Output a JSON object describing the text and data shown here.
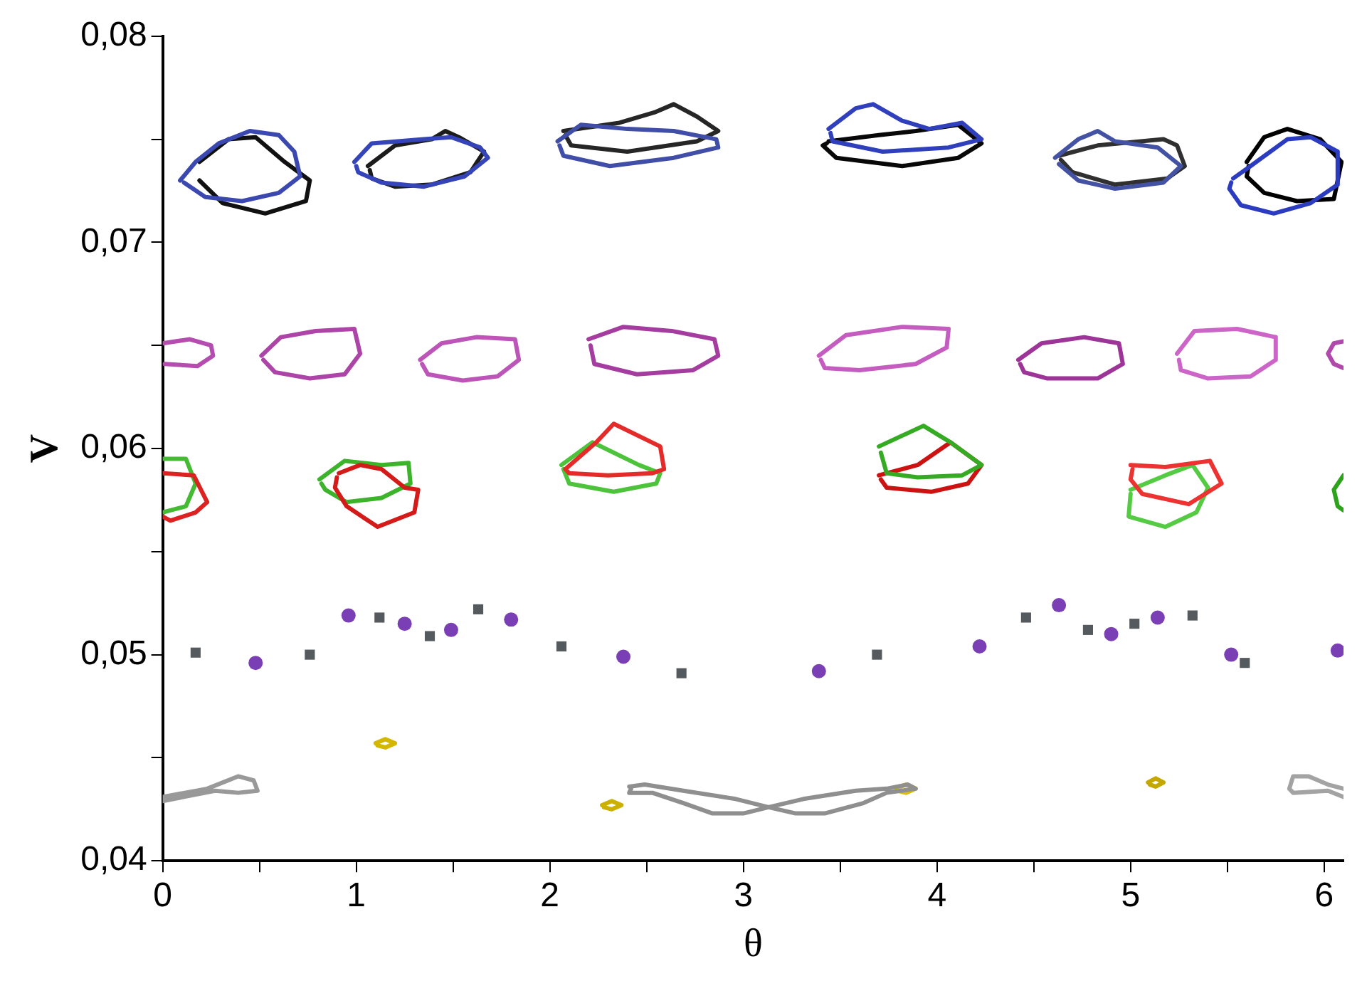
{
  "chart_data": {
    "type": "scatter",
    "xlabel": "θ",
    "ylabel": "V",
    "xlim": [
      0,
      6.1
    ],
    "ylim": [
      0.04,
      0.08
    ],
    "xticks": [
      0,
      {
        "value": 0.5,
        "label": null
      },
      1,
      {
        "value": 1.5,
        "label": null
      },
      2,
      {
        "value": 2.5,
        "label": null
      },
      3,
      {
        "value": 3.5,
        "label": null
      },
      4,
      {
        "value": 4.5,
        "label": null
      },
      5,
      {
        "value": 5.5,
        "label": null
      },
      6
    ],
    "yticks": [
      {
        "value": 0.04,
        "label": "0,04"
      },
      {
        "value": 0.045,
        "label": null
      },
      {
        "value": 0.05,
        "label": "0,05"
      },
      {
        "value": 0.055,
        "label": null
      },
      {
        "value": 0.06,
        "label": "0,06"
      },
      {
        "value": 0.065,
        "label": null
      },
      {
        "value": 0.07,
        "label": "0,07"
      },
      {
        "value": 0.075,
        "label": null
      },
      {
        "value": 0.08,
        "label": "0,08"
      }
    ],
    "grid": false,
    "legend": false,
    "series": [
      {
        "type": "line",
        "marker": "none",
        "color": "#3a48b0",
        "x": [
          0.09,
          0.17,
          0.29,
          0.45,
          0.6,
          0.68,
          0.71,
          0.6,
          0.41,
          0.22,
          0.11
        ],
        "values": [
          0.073,
          0.0739,
          0.0748,
          0.0754,
          0.0752,
          0.0744,
          0.0732,
          0.0724,
          0.072,
          0.0722,
          0.0729
        ]
      },
      {
        "type": "line",
        "marker": "none",
        "color": "#111111",
        "x": [
          0.19,
          0.34,
          0.48,
          0.63,
          0.76,
          0.74,
          0.53,
          0.31,
          0.19
        ],
        "values": [
          0.0739,
          0.075,
          0.0751,
          0.0739,
          0.073,
          0.072,
          0.0714,
          0.0719,
          0.073
        ]
      },
      {
        "type": "line",
        "marker": "none",
        "color": "#3544b8",
        "x": [
          0.99,
          1.08,
          1.35,
          1.49,
          1.64,
          1.68,
          1.56,
          1.35,
          1.13,
          1.01,
          1.0
        ],
        "values": [
          0.0739,
          0.0748,
          0.075,
          0.0751,
          0.0746,
          0.0741,
          0.0732,
          0.0727,
          0.0729,
          0.0734,
          0.0737
        ]
      },
      {
        "type": "line",
        "marker": "none",
        "color": "#1c1c1c",
        "x": [
          1.06,
          1.2,
          1.39,
          1.46,
          1.53,
          1.66,
          1.59,
          1.39,
          1.2,
          1.08,
          1.07
        ],
        "values": [
          0.0737,
          0.0747,
          0.075,
          0.0754,
          0.0751,
          0.0744,
          0.0734,
          0.0728,
          0.0727,
          0.0731,
          0.0735
        ]
      },
      {
        "type": "line",
        "marker": "none",
        "color": "#404ea8",
        "x": [
          2.04,
          2.16,
          2.4,
          2.64,
          2.86,
          2.87,
          2.64,
          2.31,
          2.07,
          2.05
        ],
        "values": [
          0.0749,
          0.0757,
          0.0755,
          0.0754,
          0.075,
          0.0746,
          0.0741,
          0.0737,
          0.0742,
          0.0747
        ]
      },
      {
        "type": "line",
        "marker": "none",
        "color": "#262626",
        "x": [
          2.07,
          2.36,
          2.54,
          2.64,
          2.76,
          2.87,
          2.76,
          2.4,
          2.11,
          2.08
        ],
        "values": [
          0.0754,
          0.0758,
          0.0763,
          0.0767,
          0.0761,
          0.0754,
          0.0749,
          0.0744,
          0.0747,
          0.0752
        ]
      },
      {
        "type": "line",
        "marker": "none",
        "color": "#3040bc",
        "x": [
          3.44,
          3.58,
          3.67,
          3.82,
          3.96,
          4.13,
          4.23,
          4.06,
          3.72,
          3.46,
          3.45
        ],
        "values": [
          0.0755,
          0.0765,
          0.0767,
          0.0759,
          0.0755,
          0.0758,
          0.075,
          0.0746,
          0.0744,
          0.0749,
          0.0753
        ]
      },
      {
        "type": "line",
        "marker": "none",
        "color": "#080808",
        "x": [
          3.44,
          3.7,
          3.89,
          4.11,
          4.23,
          4.11,
          3.82,
          3.48,
          3.41,
          3.43
        ],
        "values": [
          0.0749,
          0.0752,
          0.0754,
          0.0757,
          0.0748,
          0.0741,
          0.0737,
          0.0741,
          0.0747,
          0.0748
        ]
      },
      {
        "type": "line",
        "marker": "none",
        "color": "#4452a4",
        "x": [
          4.61,
          4.73,
          4.83,
          4.92,
          5.14,
          5.26,
          5.17,
          4.92,
          4.73,
          4.63
        ],
        "values": [
          0.0741,
          0.075,
          0.0754,
          0.0749,
          0.0746,
          0.0737,
          0.0729,
          0.0726,
          0.073,
          0.0738
        ]
      },
      {
        "type": "line",
        "marker": "none",
        "color": "#303030",
        "x": [
          4.63,
          4.83,
          5.17,
          5.24,
          5.28,
          5.19,
          4.92,
          4.7,
          4.64
        ],
        "values": [
          0.0742,
          0.0747,
          0.075,
          0.0747,
          0.0737,
          0.0731,
          0.0728,
          0.0734,
          0.074
        ]
      },
      {
        "type": "line",
        "marker": "none",
        "color": "#2c3cc0",
        "x": [
          5.53,
          5.62,
          5.81,
          5.93,
          6.07,
          6.07,
          5.93,
          5.74,
          5.57,
          5.51,
          5.52
        ],
        "values": [
          0.0731,
          0.0737,
          0.075,
          0.0751,
          0.0744,
          0.0728,
          0.0719,
          0.0714,
          0.0718,
          0.0726,
          0.0729
        ]
      },
      {
        "type": "line",
        "marker": "none",
        "color": "#000000",
        "x": [
          5.6,
          5.69,
          5.81,
          5.98,
          6.09,
          6.05,
          5.86,
          5.69,
          5.6,
          5.61
        ],
        "values": [
          0.0739,
          0.0751,
          0.0755,
          0.075,
          0.0739,
          0.0721,
          0.072,
          0.0724,
          0.0732,
          0.0737
        ]
      },
      {
        "type": "line",
        "marker": "none",
        "color": "#b54cb0",
        "x": [
          0,
          0.14,
          0.25,
          0.26,
          0.18,
          0.01
        ],
        "values": [
          0.0651,
          0.0653,
          0.065,
          0.0645,
          0.064,
          0.0641
        ]
      },
      {
        "type": "line",
        "marker": "none",
        "color": "#ad44a8",
        "x": [
          0.51,
          0.61,
          0.79,
          0.99,
          1.02,
          0.94,
          0.76,
          0.58,
          0.52
        ],
        "values": [
          0.0645,
          0.0654,
          0.0657,
          0.0658,
          0.0646,
          0.0636,
          0.0634,
          0.0637,
          0.0643
        ]
      },
      {
        "type": "line",
        "marker": "none",
        "color": "#bd54b8",
        "x": [
          1.33,
          1.44,
          1.62,
          1.82,
          1.84,
          1.73,
          1.55,
          1.37,
          1.34
        ],
        "values": [
          0.0643,
          0.0651,
          0.0654,
          0.0653,
          0.0643,
          0.0635,
          0.0633,
          0.0636,
          0.0641
        ]
      },
      {
        "type": "line",
        "marker": "none",
        "color": "#a53ca0",
        "x": [
          2.2,
          2.38,
          2.63,
          2.85,
          2.87,
          2.74,
          2.45,
          2.23,
          2.21
        ],
        "values": [
          0.0653,
          0.0659,
          0.0657,
          0.0653,
          0.0645,
          0.0638,
          0.0636,
          0.0641,
          0.065
        ]
      },
      {
        "type": "line",
        "marker": "none",
        "color": "#c55cc0",
        "x": [
          3.39,
          3.53,
          3.82,
          4.06,
          4.05,
          3.89,
          3.6,
          3.42,
          3.4
        ],
        "values": [
          0.0645,
          0.0655,
          0.0659,
          0.0658,
          0.0649,
          0.0641,
          0.0638,
          0.0639,
          0.0643
        ]
      },
      {
        "type": "line",
        "marker": "none",
        "color": "#9d3498",
        "x": [
          4.42,
          4.54,
          4.76,
          4.94,
          4.96,
          4.83,
          4.57,
          4.45,
          4.43
        ],
        "values": [
          0.0643,
          0.0651,
          0.0654,
          0.0651,
          0.0641,
          0.0634,
          0.0634,
          0.0637,
          0.0641
        ]
      },
      {
        "type": "line",
        "marker": "none",
        "color": "#cd64c8",
        "x": [
          5.24,
          5.33,
          5.55,
          5.75,
          5.75,
          5.62,
          5.4,
          5.26,
          5.25
        ],
        "values": [
          0.0646,
          0.0657,
          0.0658,
          0.0654,
          0.0643,
          0.0635,
          0.0634,
          0.0638,
          0.0643
        ]
      },
      {
        "type": "line",
        "marker": "none",
        "color": "#b148ac",
        "x": [
          6.1,
          6.05,
          6.02,
          6.05,
          6.1
        ],
        "values": [
          0.0652,
          0.0651,
          0.0646,
          0.0641,
          0.0639
        ]
      },
      {
        "type": "line",
        "marker": "none",
        "color": "#dd2222",
        "x": [
          0,
          0.16,
          0.23,
          0.17,
          0.04,
          0
        ],
        "values": [
          0.0588,
          0.0587,
          0.0574,
          0.0569,
          0.0565,
          0.0567
        ]
      },
      {
        "type": "line",
        "marker": "none",
        "color": "#44bb33",
        "x": [
          0,
          0.12,
          0.17,
          0.12,
          0
        ],
        "values": [
          0.0595,
          0.0595,
          0.0583,
          0.0572,
          0.0569
        ]
      },
      {
        "type": "line",
        "marker": "none",
        "color": "#d51a1a",
        "x": [
          0.91,
          1.02,
          1.13,
          1.25,
          1.32,
          1.3,
          1.11,
          0.95,
          0.89,
          0.9
        ],
        "values": [
          0.0588,
          0.0592,
          0.059,
          0.0581,
          0.058,
          0.0569,
          0.0562,
          0.0572,
          0.0581,
          0.0586
        ]
      },
      {
        "type": "line",
        "marker": "none",
        "color": "#3cb32b",
        "x": [
          0.81,
          0.94,
          1.13,
          1.27,
          1.28,
          1.13,
          0.95,
          0.84,
          0.82
        ],
        "values": [
          0.0585,
          0.0594,
          0.0592,
          0.0593,
          0.0583,
          0.0576,
          0.0574,
          0.058,
          0.0583
        ]
      },
      {
        "type": "line",
        "marker": "none",
        "color": "#e52a2a",
        "x": [
          2.08,
          2.24,
          2.33,
          2.57,
          2.59,
          2.53,
          2.3,
          2.1,
          2.09
        ],
        "values": [
          0.059,
          0.0603,
          0.0612,
          0.0601,
          0.059,
          0.0588,
          0.0587,
          0.0588,
          0.0589
        ]
      },
      {
        "type": "line",
        "marker": "none",
        "color": "#4cc33b",
        "x": [
          2.06,
          2.22,
          2.46,
          2.57,
          2.55,
          2.33,
          2.1,
          2.07
        ],
        "values": [
          0.0592,
          0.0603,
          0.0592,
          0.0588,
          0.0583,
          0.0579,
          0.0583,
          0.059
        ]
      },
      {
        "type": "line",
        "marker": "none",
        "color": "#34ab23",
        "x": [
          3.7,
          3.93,
          4.07,
          4.23,
          4.13,
          3.9,
          3.74,
          3.71
        ],
        "values": [
          0.0601,
          0.0611,
          0.0603,
          0.0592,
          0.0587,
          0.0586,
          0.0588,
          0.0598
        ]
      },
      {
        "type": "line",
        "marker": "none",
        "color": "#cd1212",
        "x": [
          3.7,
          3.9,
          4.07,
          4.23,
          4.16,
          3.97,
          3.74,
          3.71
        ],
        "values": [
          0.0587,
          0.0592,
          0.0603,
          0.0592,
          0.0583,
          0.0579,
          0.0581,
          0.0585
        ]
      },
      {
        "type": "line",
        "marker": "none",
        "color": "#ed3232",
        "x": [
          5.0,
          5.18,
          5.41,
          5.47,
          5.3,
          5.06,
          5.0,
          5.01
        ],
        "values": [
          0.0592,
          0.0591,
          0.0594,
          0.0583,
          0.0573,
          0.0578,
          0.0585,
          0.059
        ]
      },
      {
        "type": "line",
        "marker": "none",
        "color": "#54cb43",
        "x": [
          5.0,
          5.18,
          5.32,
          5.4,
          5.34,
          5.18,
          4.99,
          5.0
        ],
        "values": [
          0.058,
          0.0587,
          0.0592,
          0.0581,
          0.0569,
          0.0562,
          0.0567,
          0.0578
        ]
      },
      {
        "type": "line",
        "marker": "none",
        "color": "#2ca31b",
        "x": [
          6.1,
          6.05,
          6.07,
          6.1
        ],
        "values": [
          0.0587,
          0.058,
          0.0572,
          0.057
        ]
      },
      {
        "type": "line",
        "marker": "none",
        "color": "#999999",
        "x": [
          0,
          0.23,
          0.39,
          0.47,
          0.49,
          0.39,
          0.27,
          0
        ],
        "values": [
          0.0431,
          0.0435,
          0.0441,
          0.0439,
          0.0434,
          0.0433,
          0.0434,
          0.0429
        ]
      },
      {
        "type": "line",
        "marker": "none",
        "color": "#8f8f8f",
        "x": [
          2.41,
          2.49,
          2.69,
          2.96,
          3.13,
          3.31,
          3.58,
          3.74,
          3.85,
          3.89,
          3.74,
          3.62,
          3.42,
          3.27,
          3.13,
          3.0,
          2.84,
          2.69,
          2.53,
          2.41,
          2.42
        ],
        "values": [
          0.0436,
          0.0437,
          0.0434,
          0.043,
          0.0426,
          0.043,
          0.0434,
          0.0435,
          0.0437,
          0.0435,
          0.0433,
          0.0428,
          0.0423,
          0.0423,
          0.0426,
          0.0423,
          0.0423,
          0.0428,
          0.0433,
          0.0433,
          0.0435
        ]
      },
      {
        "type": "line",
        "marker": "none",
        "color": "#a3a3a3",
        "x": [
          6.1,
          6.02,
          5.92,
          5.84,
          5.82,
          5.84,
          6.02,
          6.1
        ],
        "values": [
          0.0435,
          0.0437,
          0.0441,
          0.0441,
          0.0435,
          0.0433,
          0.0434,
          0.0431
        ]
      },
      {
        "type": "line",
        "marker": "none",
        "color": "#d4b800",
        "x": [
          1.1,
          1.15,
          1.2,
          1.15,
          1.11
        ],
        "values": [
          0.0457,
          0.0459,
          0.0457,
          0.0455,
          0.0456
        ]
      },
      {
        "type": "line",
        "marker": "none",
        "color": "#ccb000",
        "x": [
          2.27,
          2.32,
          2.37,
          2.32,
          2.28
        ],
        "values": [
          0.0427,
          0.0429,
          0.0427,
          0.0425,
          0.0426
        ]
      },
      {
        "type": "line",
        "marker": "none",
        "color": "#dcc000",
        "x": [
          3.79,
          3.84,
          3.89,
          3.84,
          3.8
        ],
        "values": [
          0.0435,
          0.0437,
          0.0435,
          0.0433,
          0.0434
        ]
      },
      {
        "type": "line",
        "marker": "none",
        "color": "#c4a800",
        "x": [
          5.09,
          5.13,
          5.17,
          5.13,
          5.1
        ],
        "values": [
          0.0438,
          0.044,
          0.0438,
          0.0436,
          0.0437
        ]
      },
      {
        "type": "scatter",
        "marker": "square",
        "color": "#555a5e",
        "x": [
          0.17,
          0.76,
          1.12,
          1.38,
          1.63,
          2.06,
          2.68,
          3.69,
          4.46,
          4.78,
          5.02,
          5.32,
          5.59
        ],
        "values": [
          0.0501,
          0.05,
          0.0518,
          0.0509,
          0.0522,
          0.0504,
          0.0491,
          0.05,
          0.0518,
          0.0512,
          0.0515,
          0.0519,
          0.0496
        ]
      },
      {
        "type": "scatter",
        "marker": "circle",
        "color": "#7a3fb5",
        "x": [
          0.48,
          0.96,
          1.25,
          1.49,
          1.8,
          2.38,
          3.39,
          4.22,
          4.63,
          4.9,
          5.14,
          5.52,
          6.07
        ],
        "values": [
          0.0496,
          0.0519,
          0.0515,
          0.0512,
          0.0517,
          0.0499,
          0.0492,
          0.0504,
          0.0524,
          0.051,
          0.0518,
          0.05,
          0.0502
        ]
      }
    ]
  }
}
